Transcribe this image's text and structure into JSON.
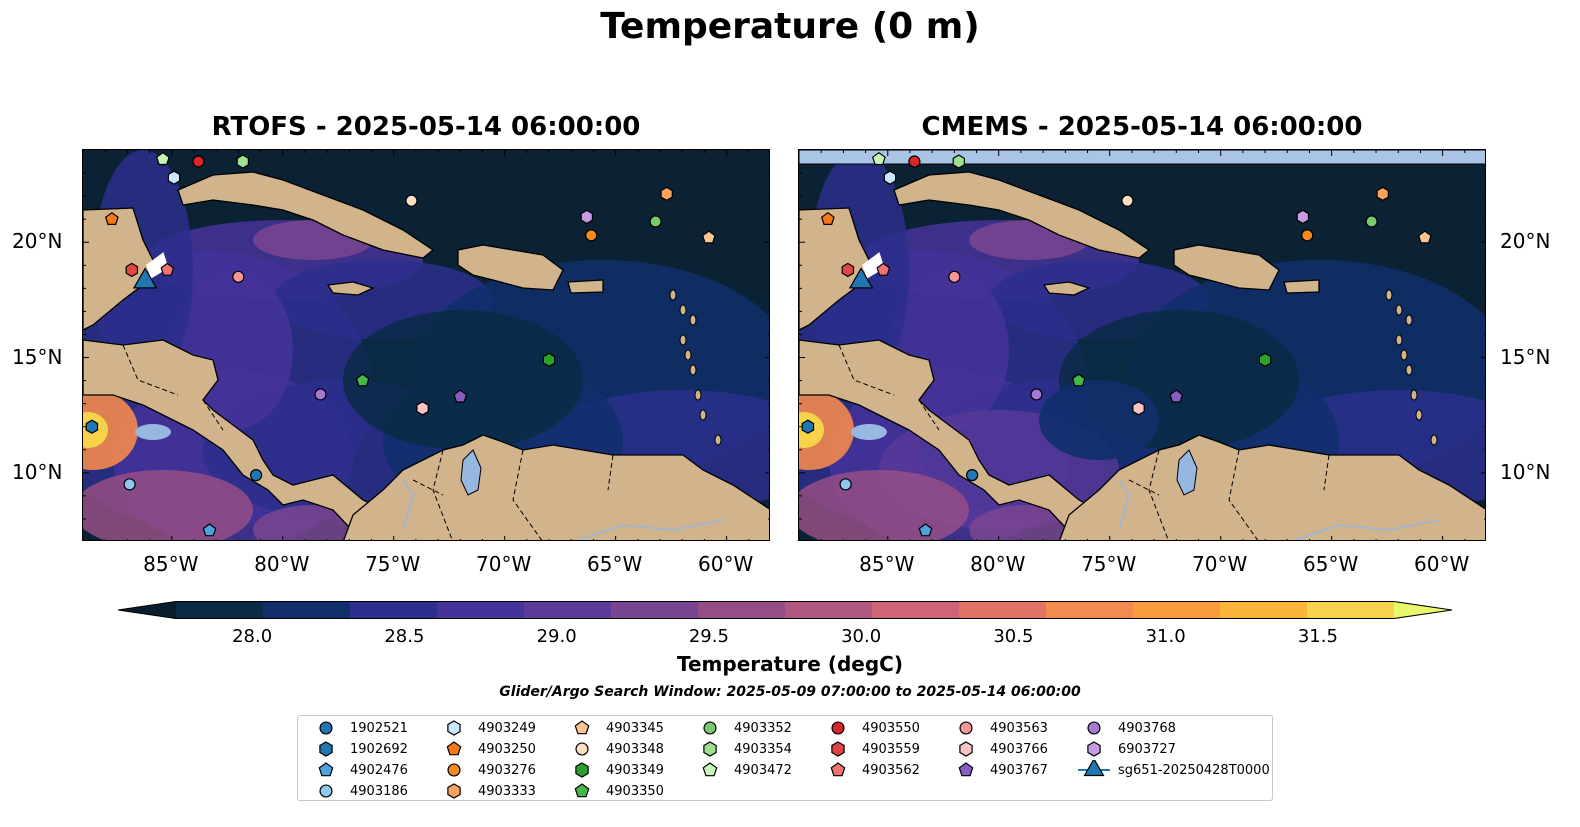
{
  "figure": {
    "suptitle": "Temperature (0 m)",
    "panels": [
      {
        "title": "RTOFS - 2025-05-14 06:00:00"
      },
      {
        "title": "CMEMS - 2025-05-14 06:00:00"
      }
    ],
    "x_ticks": [
      "85°W",
      "80°W",
      "75°W",
      "70°W",
      "65°W",
      "60°W"
    ],
    "y_ticks": [
      "20°N",
      "15°N",
      "10°N"
    ],
    "colorbar": {
      "label": "Temperature (degC)",
      "ticks": [
        "28.0",
        "28.5",
        "29.0",
        "29.5",
        "30.0",
        "30.5",
        "31.0",
        "31.5"
      ],
      "colors": [
        "#071d2b",
        "#0b2a45",
        "#112f6b",
        "#2c2f8c",
        "#45329a",
        "#5d3a9a",
        "#7a4590",
        "#954d86",
        "#b0577f",
        "#cd6577",
        "#e27466",
        "#f38a4e",
        "#f99b3c",
        "#fab539",
        "#f7d24b",
        "#eaf76b"
      ]
    },
    "search_window": "Glider/Argo Search Window: 2025-05-09 07:00:00 to 2025-05-14 06:00:00"
  },
  "chart_data": {
    "type": "map",
    "extent": {
      "lon": [
        -89,
        -58
      ],
      "lat": [
        7,
        24
      ]
    },
    "variable": "Temperature",
    "units": "degC",
    "depth": "0 m",
    "colorbar_range": [
      27.75,
      31.75
    ],
    "floats": [
      {
        "id": "1902521",
        "marker": "circle",
        "color": "#1f77b4",
        "lon": -81.2,
        "lat": 9.9
      },
      {
        "id": "1902692",
        "marker": "hexagon",
        "color": "#1f77b4",
        "lon": -88.6,
        "lat": 12.0
      },
      {
        "id": "4902476",
        "marker": "pentagon",
        "color": "#4aa3df",
        "lon": -83.3,
        "lat": 7.5
      },
      {
        "id": "4903186",
        "marker": "circle",
        "color": "#8ec8f0",
        "lon": -86.9,
        "lat": 9.5
      },
      {
        "id": "4903249",
        "marker": "hexagon",
        "color": "#c9e8fb",
        "lon": -84.9,
        "lat": 22.8
      },
      {
        "id": "4903250",
        "marker": "pentagon",
        "color": "#f5781a",
        "lon": -87.7,
        "lat": 21.0
      },
      {
        "id": "4903276",
        "marker": "circle",
        "color": "#f58a1f",
        "lon": -66.1,
        "lat": 20.3
      },
      {
        "id": "4903333",
        "marker": "hexagon",
        "color": "#fba35c",
        "lon": -62.7,
        "lat": 22.1
      },
      {
        "id": "4903345",
        "marker": "pentagon",
        "color": "#fbc591",
        "lon": -60.8,
        "lat": 20.2
      },
      {
        "id": "4903348",
        "marker": "circle",
        "color": "#fde0c2",
        "lon": -74.2,
        "lat": 21.8
      },
      {
        "id": "4903349",
        "marker": "hexagon",
        "color": "#2ca02c",
        "lon": -68.0,
        "lat": 14.9
      },
      {
        "id": "4903350",
        "marker": "pentagon",
        "color": "#44b744",
        "lon": -76.4,
        "lat": 14.0
      },
      {
        "id": "4903352",
        "marker": "circle",
        "color": "#78c96e",
        "lon": -63.2,
        "lat": 20.9
      },
      {
        "id": "4903354",
        "marker": "hexagon",
        "color": "#9ee08f",
        "lon": -81.8,
        "lat": 23.5
      },
      {
        "id": "4903472",
        "marker": "pentagon",
        "color": "#c7f5b8",
        "lon": -85.4,
        "lat": 23.6
      },
      {
        "id": "4903550",
        "marker": "circle",
        "color": "#d62728",
        "lon": -83.8,
        "lat": 23.5
      },
      {
        "id": "4903559",
        "marker": "hexagon",
        "color": "#e04545",
        "lon": -86.8,
        "lat": 18.8
      },
      {
        "id": "4903562",
        "marker": "pentagon",
        "color": "#ef7272",
        "lon": -85.2,
        "lat": 18.8
      },
      {
        "id": "4903563",
        "marker": "circle",
        "color": "#f59797",
        "lon": -82.0,
        "lat": 18.5
      },
      {
        "id": "4903766",
        "marker": "hexagon",
        "color": "#fbc4c4",
        "lon": -73.7,
        "lat": 12.8
      },
      {
        "id": "4903767",
        "marker": "pentagon",
        "color": "#8a5cc2",
        "lon": -72.0,
        "lat": 13.3
      },
      {
        "id": "4903768",
        "marker": "circle",
        "color": "#a679d2",
        "lon": -78.3,
        "lat": 13.4
      },
      {
        "id": "6903727",
        "marker": "hexagon",
        "color": "#c89ce4",
        "lon": -66.3,
        "lat": 21.1
      }
    ],
    "glider": {
      "id": "sg651-20250428T0000",
      "marker": "triangle",
      "color": "#1f77b4",
      "lon": -86.2,
      "lat": 18.3
    }
  }
}
